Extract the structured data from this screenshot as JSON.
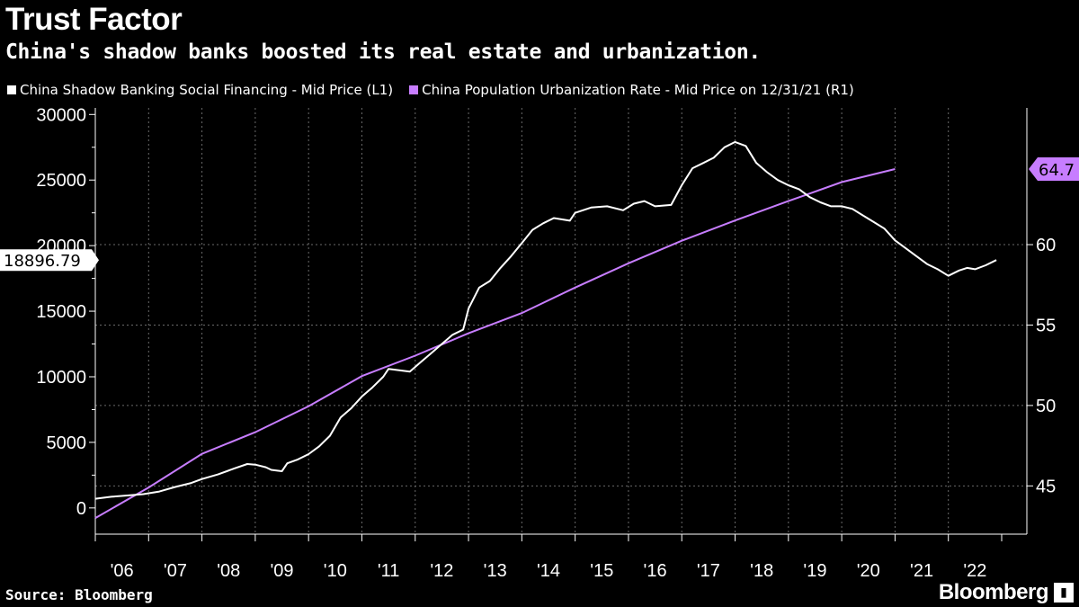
{
  "header": {
    "title": "Trust Factor",
    "subtitle": "China's shadow banks boosted its real estate and urbanization."
  },
  "footer": {
    "source": "Source: Bloomberg",
    "brand": "Bloomberg"
  },
  "colors": {
    "background": "#000000",
    "series1": "#ffffff",
    "series2": "#c77dff",
    "grid": "#6a6a6a"
  },
  "icons": {
    "brand_mark": "bar-chart-icon"
  },
  "chart_data": {
    "type": "line",
    "grid": true,
    "legend_position": "top-left",
    "x_tick_labels": [
      "'06",
      "'07",
      "'08",
      "'09",
      "'10",
      "'11",
      "'12",
      "'13",
      "'14",
      "'15",
      "'16",
      "'17",
      "'18",
      "'19",
      "'20",
      "'21",
      "'22"
    ],
    "x_range": [
      2006.0,
      2023.0
    ],
    "y_left": {
      "range": [
        -2000,
        30500
      ],
      "ticks": [
        0,
        5000,
        10000,
        15000,
        20000,
        25000,
        30000
      ],
      "tick_labels": [
        "0",
        "5000",
        "10000",
        "15000",
        "20000",
        "25000",
        "30000"
      ],
      "last_value_label": "18896.79",
      "last_value": 18896.79
    },
    "y_right": {
      "range": [
        42.0,
        68.5
      ],
      "ticks": [
        45,
        50,
        55,
        60
      ],
      "tick_labels": [
        "45",
        "50",
        "55",
        "60"
      ],
      "last_value_label": "64.7",
      "last_value": 64.7
    },
    "series": [
      {
        "name": "China Shadow Banking Social Financing - Mid Price (L1)",
        "axis": "left",
        "points": [
          [
            2006.0,
            700
          ],
          [
            2006.3,
            850
          ],
          [
            2006.6,
            950
          ],
          [
            2006.9,
            1050
          ],
          [
            2007.2,
            1250
          ],
          [
            2007.5,
            1600
          ],
          [
            2007.8,
            1900
          ],
          [
            2008.0,
            2200
          ],
          [
            2008.3,
            2550
          ],
          [
            2008.6,
            3000
          ],
          [
            2008.85,
            3350
          ],
          [
            2009.0,
            3300
          ],
          [
            2009.2,
            3100
          ],
          [
            2009.3,
            2900
          ],
          [
            2009.5,
            2800
          ],
          [
            2009.6,
            3400
          ],
          [
            2009.8,
            3700
          ],
          [
            2010.0,
            4100
          ],
          [
            2010.2,
            4700
          ],
          [
            2010.4,
            5500
          ],
          [
            2010.6,
            6900
          ],
          [
            2010.8,
            7600
          ],
          [
            2011.0,
            8500
          ],
          [
            2011.2,
            9200
          ],
          [
            2011.4,
            10000
          ],
          [
            2011.5,
            10600
          ],
          [
            2011.7,
            10500
          ],
          [
            2011.9,
            10400
          ],
          [
            2012.1,
            11100
          ],
          [
            2012.3,
            11800
          ],
          [
            2012.5,
            12500
          ],
          [
            2012.7,
            13200
          ],
          [
            2012.9,
            13600
          ],
          [
            2013.0,
            15200
          ],
          [
            2013.2,
            16800
          ],
          [
            2013.4,
            17300
          ],
          [
            2013.6,
            18300
          ],
          [
            2013.8,
            19200
          ],
          [
            2014.0,
            20200
          ],
          [
            2014.2,
            21200
          ],
          [
            2014.4,
            21700
          ],
          [
            2014.6,
            22100
          ],
          [
            2014.9,
            21900
          ],
          [
            2015.0,
            22500
          ],
          [
            2015.3,
            22900
          ],
          [
            2015.6,
            23000
          ],
          [
            2015.9,
            22700
          ],
          [
            2016.1,
            23200
          ],
          [
            2016.3,
            23400
          ],
          [
            2016.5,
            23000
          ],
          [
            2016.8,
            23100
          ],
          [
            2017.0,
            24600
          ],
          [
            2017.2,
            25900
          ],
          [
            2017.4,
            26300
          ],
          [
            2017.6,
            26700
          ],
          [
            2017.8,
            27500
          ],
          [
            2018.0,
            27900
          ],
          [
            2018.2,
            27600
          ],
          [
            2018.4,
            26300
          ],
          [
            2018.6,
            25600
          ],
          [
            2018.8,
            25000
          ],
          [
            2019.0,
            24600
          ],
          [
            2019.2,
            24300
          ],
          [
            2019.4,
            23700
          ],
          [
            2019.6,
            23300
          ],
          [
            2019.8,
            23000
          ],
          [
            2020.0,
            23000
          ],
          [
            2020.2,
            22800
          ],
          [
            2020.4,
            22300
          ],
          [
            2020.6,
            21800
          ],
          [
            2020.8,
            21300
          ],
          [
            2021.0,
            20400
          ],
          [
            2021.2,
            19800
          ],
          [
            2021.4,
            19200
          ],
          [
            2021.6,
            18600
          ],
          [
            2021.8,
            18200
          ],
          [
            2022.0,
            17700
          ],
          [
            2022.2,
            18100
          ],
          [
            2022.35,
            18300
          ],
          [
            2022.5,
            18200
          ],
          [
            2022.7,
            18500
          ],
          [
            2022.9,
            18896.79
          ]
        ]
      },
      {
        "name": "China Population Urbanization Rate - Mid Price on 12/31/21 (R1)",
        "axis": "right",
        "points": [
          [
            2006.0,
            43.0
          ],
          [
            2007.0,
            44.9
          ],
          [
            2008.0,
            46.99
          ],
          [
            2009.0,
            48.34
          ],
          [
            2010.0,
            49.95
          ],
          [
            2011.0,
            51.83
          ],
          [
            2012.0,
            53.1
          ],
          [
            2013.0,
            54.49
          ],
          [
            2014.0,
            55.75
          ],
          [
            2015.0,
            57.33
          ],
          [
            2016.0,
            58.84
          ],
          [
            2017.0,
            60.24
          ],
          [
            2018.0,
            61.5
          ],
          [
            2019.0,
            62.71
          ],
          [
            2020.0,
            63.89
          ],
          [
            2021.0,
            64.7
          ]
        ]
      }
    ]
  }
}
